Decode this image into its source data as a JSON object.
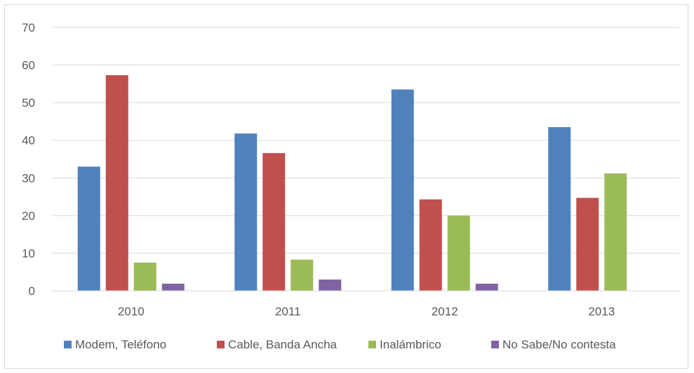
{
  "chart_data": {
    "type": "bar",
    "title": "",
    "xlabel": "",
    "ylabel": "",
    "categories": [
      "2010",
      "2011",
      "2012",
      "2013"
    ],
    "ylim": [
      0,
      70
    ],
    "yticks": [
      0,
      10,
      20,
      30,
      40,
      50,
      60,
      70
    ],
    "grid": true,
    "legend_position": "bottom",
    "series": [
      {
        "name": "Modem, Teléfono",
        "color": "#4f81bd",
        "values": [
          33,
          41.8,
          53.5,
          43.5
        ]
      },
      {
        "name": "Cable, Banda Ancha",
        "color": "#c0504d",
        "values": [
          57.3,
          36.6,
          24.3,
          24.7
        ]
      },
      {
        "name": "Inalámbrico",
        "color": "#9bbb59",
        "values": [
          7.5,
          8.3,
          20,
          31.2
        ]
      },
      {
        "name": "No Sabe/No contesta",
        "color": "#8064a2",
        "values": [
          1.9,
          3,
          1.9,
          null
        ]
      }
    ]
  }
}
